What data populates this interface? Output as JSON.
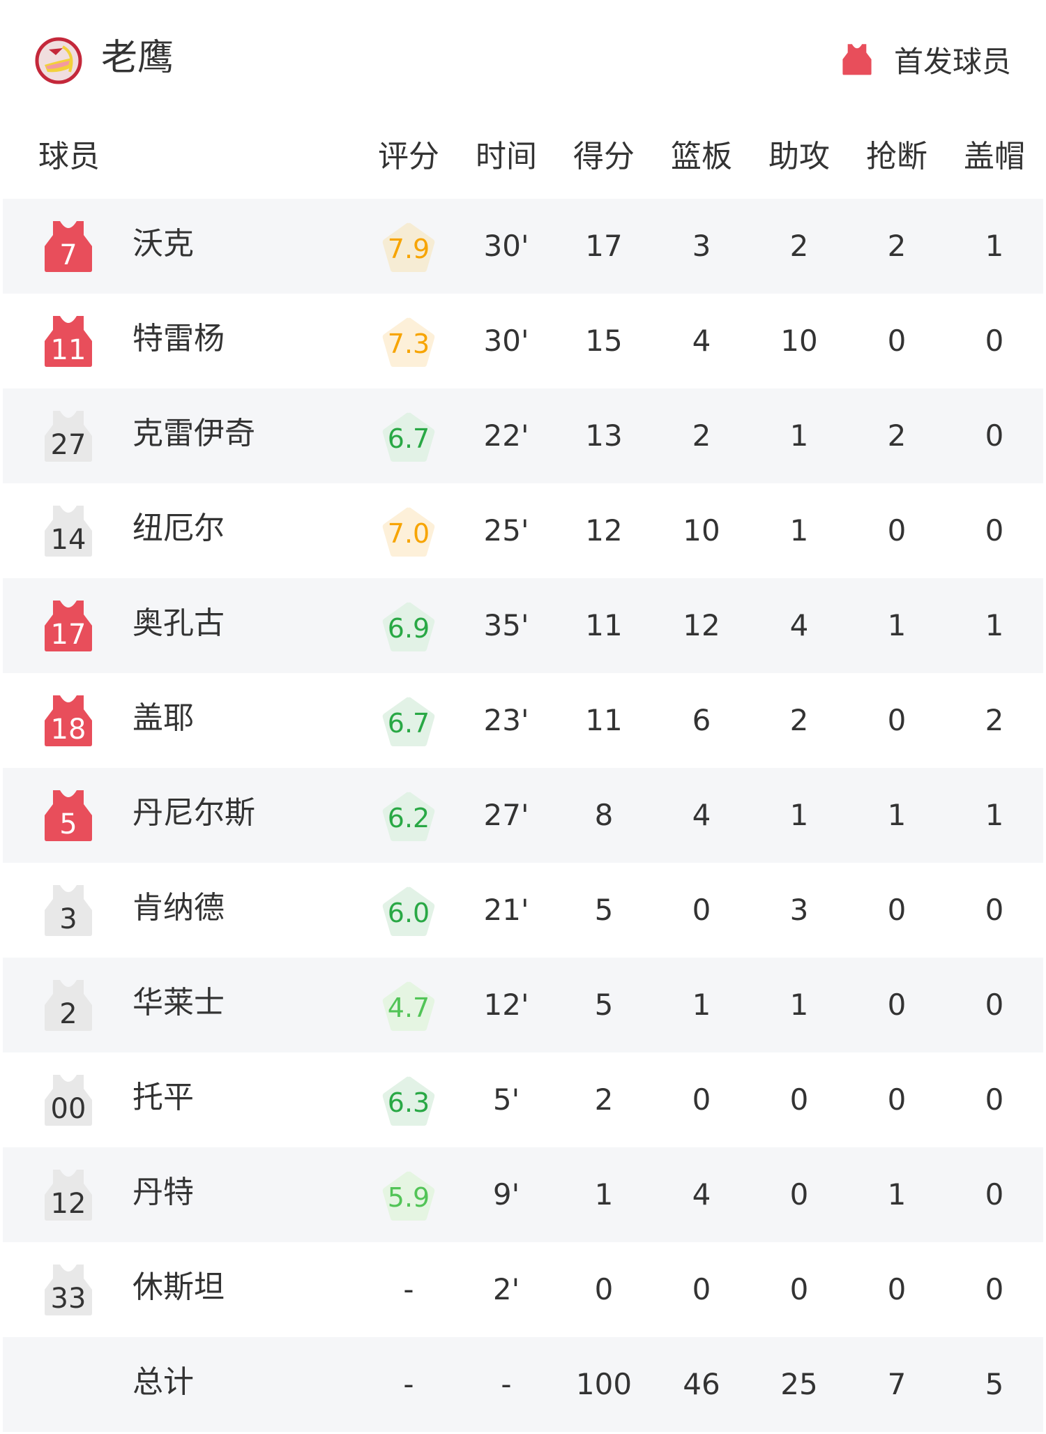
{
  "team": {
    "name": "老鹰",
    "logo_icon": "hawks-logo-icon"
  },
  "legend": {
    "label": "首发球员",
    "icon": "jersey-icon",
    "color": "#e84e5b"
  },
  "columns": [
    "球员",
    "评分",
    "时间",
    "得分",
    "篮板",
    "助攻",
    "抢断",
    "盖帽"
  ],
  "colors": {
    "starter_jersey": "#e84e5b",
    "bench_jersey": "#e8e8e8",
    "alt_row": "#f5f6f8",
    "rating_high_text": "#f7a400",
    "rating_high_bg": "#fdf0d9",
    "rating_mid_text": "#29a845",
    "rating_mid_bg": "#e2f2e6",
    "rating_low_text": "#52c457",
    "rating_low_bg": "#e5f5e2"
  },
  "players": [
    {
      "number": "7",
      "name": "沃克",
      "starter": true,
      "rating": "7.9",
      "tier": "high",
      "min": "30'",
      "pts": "17",
      "reb": "3",
      "ast": "2",
      "stl": "2",
      "blk": "1"
    },
    {
      "number": "11",
      "name": "特雷杨",
      "starter": true,
      "rating": "7.3",
      "tier": "high",
      "min": "30'",
      "pts": "15",
      "reb": "4",
      "ast": "10",
      "stl": "0",
      "blk": "0"
    },
    {
      "number": "27",
      "name": "克雷伊奇",
      "starter": false,
      "rating": "6.7",
      "tier": "mid",
      "min": "22'",
      "pts": "13",
      "reb": "2",
      "ast": "1",
      "stl": "2",
      "blk": "0"
    },
    {
      "number": "14",
      "name": "纽厄尔",
      "starter": false,
      "rating": "7.0",
      "tier": "high",
      "min": "25'",
      "pts": "12",
      "reb": "10",
      "ast": "1",
      "stl": "0",
      "blk": "0"
    },
    {
      "number": "17",
      "name": "奥孔古",
      "starter": true,
      "rating": "6.9",
      "tier": "mid",
      "min": "35'",
      "pts": "11",
      "reb": "12",
      "ast": "4",
      "stl": "1",
      "blk": "1"
    },
    {
      "number": "18",
      "name": "盖耶",
      "starter": true,
      "rating": "6.7",
      "tier": "mid",
      "min": "23'",
      "pts": "11",
      "reb": "6",
      "ast": "2",
      "stl": "0",
      "blk": "2"
    },
    {
      "number": "5",
      "name": "丹尼尔斯",
      "starter": true,
      "rating": "6.2",
      "tier": "mid",
      "min": "27'",
      "pts": "8",
      "reb": "4",
      "ast": "1",
      "stl": "1",
      "blk": "1"
    },
    {
      "number": "3",
      "name": "肯纳德",
      "starter": false,
      "rating": "6.0",
      "tier": "mid",
      "min": "21'",
      "pts": "5",
      "reb": "0",
      "ast": "3",
      "stl": "0",
      "blk": "0"
    },
    {
      "number": "2",
      "name": "华莱士",
      "starter": false,
      "rating": "4.7",
      "tier": "low",
      "min": "12'",
      "pts": "5",
      "reb": "1",
      "ast": "1",
      "stl": "0",
      "blk": "0"
    },
    {
      "number": "00",
      "name": "托平",
      "starter": false,
      "rating": "6.3",
      "tier": "mid",
      "min": "5'",
      "pts": "2",
      "reb": "0",
      "ast": "0",
      "stl": "0",
      "blk": "0"
    },
    {
      "number": "12",
      "name": "丹特",
      "starter": false,
      "rating": "5.9",
      "tier": "low",
      "min": "9'",
      "pts": "1",
      "reb": "4",
      "ast": "0",
      "stl": "1",
      "blk": "0"
    },
    {
      "number": "33",
      "name": "休斯坦",
      "starter": false,
      "rating": "-",
      "tier": "none",
      "min": "2'",
      "pts": "0",
      "reb": "0",
      "ast": "0",
      "stl": "0",
      "blk": "0"
    }
  ],
  "total": {
    "name": "总计",
    "rating": "-",
    "min": "-",
    "pts": "100",
    "reb": "46",
    "ast": "25",
    "stl": "7",
    "blk": "5"
  }
}
